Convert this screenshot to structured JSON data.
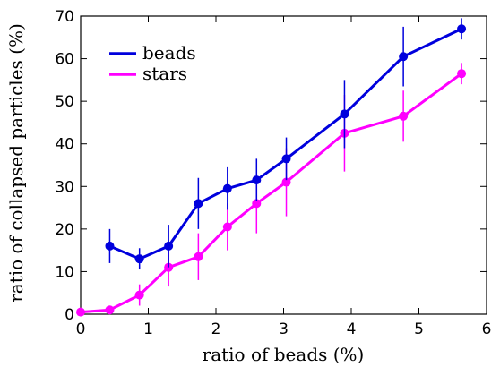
{
  "chart_data": {
    "type": "line",
    "xlabel": "ratio of beads (%)",
    "ylabel": "ratio of collapsed particles (%)",
    "xlim": [
      0,
      6
    ],
    "ylim": [
      0,
      70
    ],
    "xticks": [
      "0",
      "1",
      "2",
      "3",
      "4",
      "5",
      "6"
    ],
    "yticks": [
      "0",
      "10",
      "20",
      "30",
      "40",
      "50",
      "60",
      "70"
    ],
    "legend_position": "top-left",
    "grid": false,
    "series": [
      {
        "name": "beads",
        "color": "#0000dd",
        "x": [
          0.43,
          0.87,
          1.3,
          1.74,
          2.17,
          2.6,
          3.04,
          3.9,
          4.77,
          5.63
        ],
        "y": [
          16,
          13,
          16,
          26,
          29.5,
          31.5,
          36.5,
          47,
          60.5,
          67
        ],
        "err": [
          4,
          2.5,
          5,
          6,
          5,
          5,
          5,
          8,
          7,
          2.5
        ]
      },
      {
        "name": "stars",
        "color": "#ff00ff",
        "x": [
          0,
          0.43,
          0.87,
          1.3,
          1.74,
          2.17,
          2.6,
          3.04,
          3.9,
          4.77,
          5.63
        ],
        "y": [
          0.5,
          1,
          4.5,
          11,
          13.5,
          20.5,
          26,
          31,
          42.5,
          46.5,
          56.5
        ],
        "err": [
          0,
          0,
          2.5,
          4.5,
          5.5,
          5.5,
          7,
          8,
          9,
          6,
          2.5
        ]
      }
    ]
  }
}
